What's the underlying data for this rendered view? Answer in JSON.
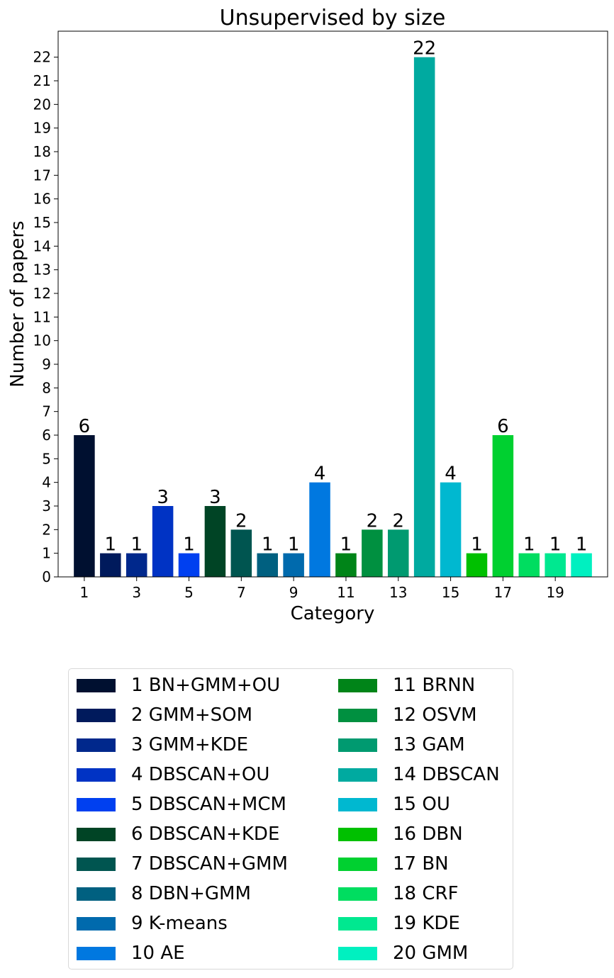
{
  "chart_data": {
    "type": "bar",
    "title": "Unsupervised by size",
    "xlabel": "Category",
    "ylabel": "Number of papers",
    "x": [
      1,
      2,
      3,
      4,
      5,
      6,
      7,
      8,
      9,
      10,
      11,
      12,
      13,
      14,
      15,
      16,
      17,
      18,
      19,
      20
    ],
    "values": [
      6,
      1,
      1,
      3,
      1,
      3,
      2,
      1,
      1,
      4,
      1,
      2,
      2,
      22,
      4,
      1,
      6,
      1,
      1,
      1
    ],
    "bar_labels": [
      "6",
      "1",
      "1",
      "3",
      "1",
      "3",
      "2",
      "1",
      "1",
      "4",
      "1",
      "2",
      "2",
      "22",
      "4",
      "1",
      "6",
      "1",
      "1",
      "1"
    ],
    "colors": [
      "#001030",
      "#001a5c",
      "#00288c",
      "#0033c4",
      "#0040f0",
      "#004425",
      "#005550",
      "#006080",
      "#006aad",
      "#0078e0",
      "#008418",
      "#009040",
      "#009a70",
      "#00aaa0",
      "#00b8d0",
      "#00c000",
      "#00d030",
      "#00dd60",
      "#00e890",
      "#00f0c0"
    ],
    "x_ticks": [
      "1",
      "3",
      "5",
      "7",
      "9",
      "11",
      "13",
      "15",
      "17",
      "19"
    ],
    "x_tick_values": [
      1,
      3,
      5,
      7,
      9,
      11,
      13,
      15,
      17,
      19
    ],
    "y_ticks": [
      "0",
      "1",
      "2",
      "3",
      "4",
      "5",
      "6",
      "7",
      "8",
      "9",
      "10",
      "11",
      "12",
      "13",
      "14",
      "15",
      "16",
      "17",
      "18",
      "19",
      "20",
      "21",
      "22"
    ],
    "ylim": [
      0,
      23.1
    ],
    "xlim": [
      0,
      21
    ],
    "grid": false,
    "legend_placement": "below",
    "legend": [
      "1 BN+GMM+OU",
      "2 GMM+SOM",
      "3 GMM+KDE",
      "4 DBSCAN+OU",
      "5 DBSCAN+MCM",
      "6 DBSCAN+KDE",
      "7 DBSCAN+GMM",
      "8 DBN+GMM",
      "9 K-means",
      "10 AE",
      "11 BRNN",
      "12 OSVM",
      "13 GAM",
      "14 DBSCAN",
      "15 OU",
      "16 DBN",
      "17 BN",
      "18 CRF",
      "19 KDE",
      "20 GMM"
    ]
  }
}
